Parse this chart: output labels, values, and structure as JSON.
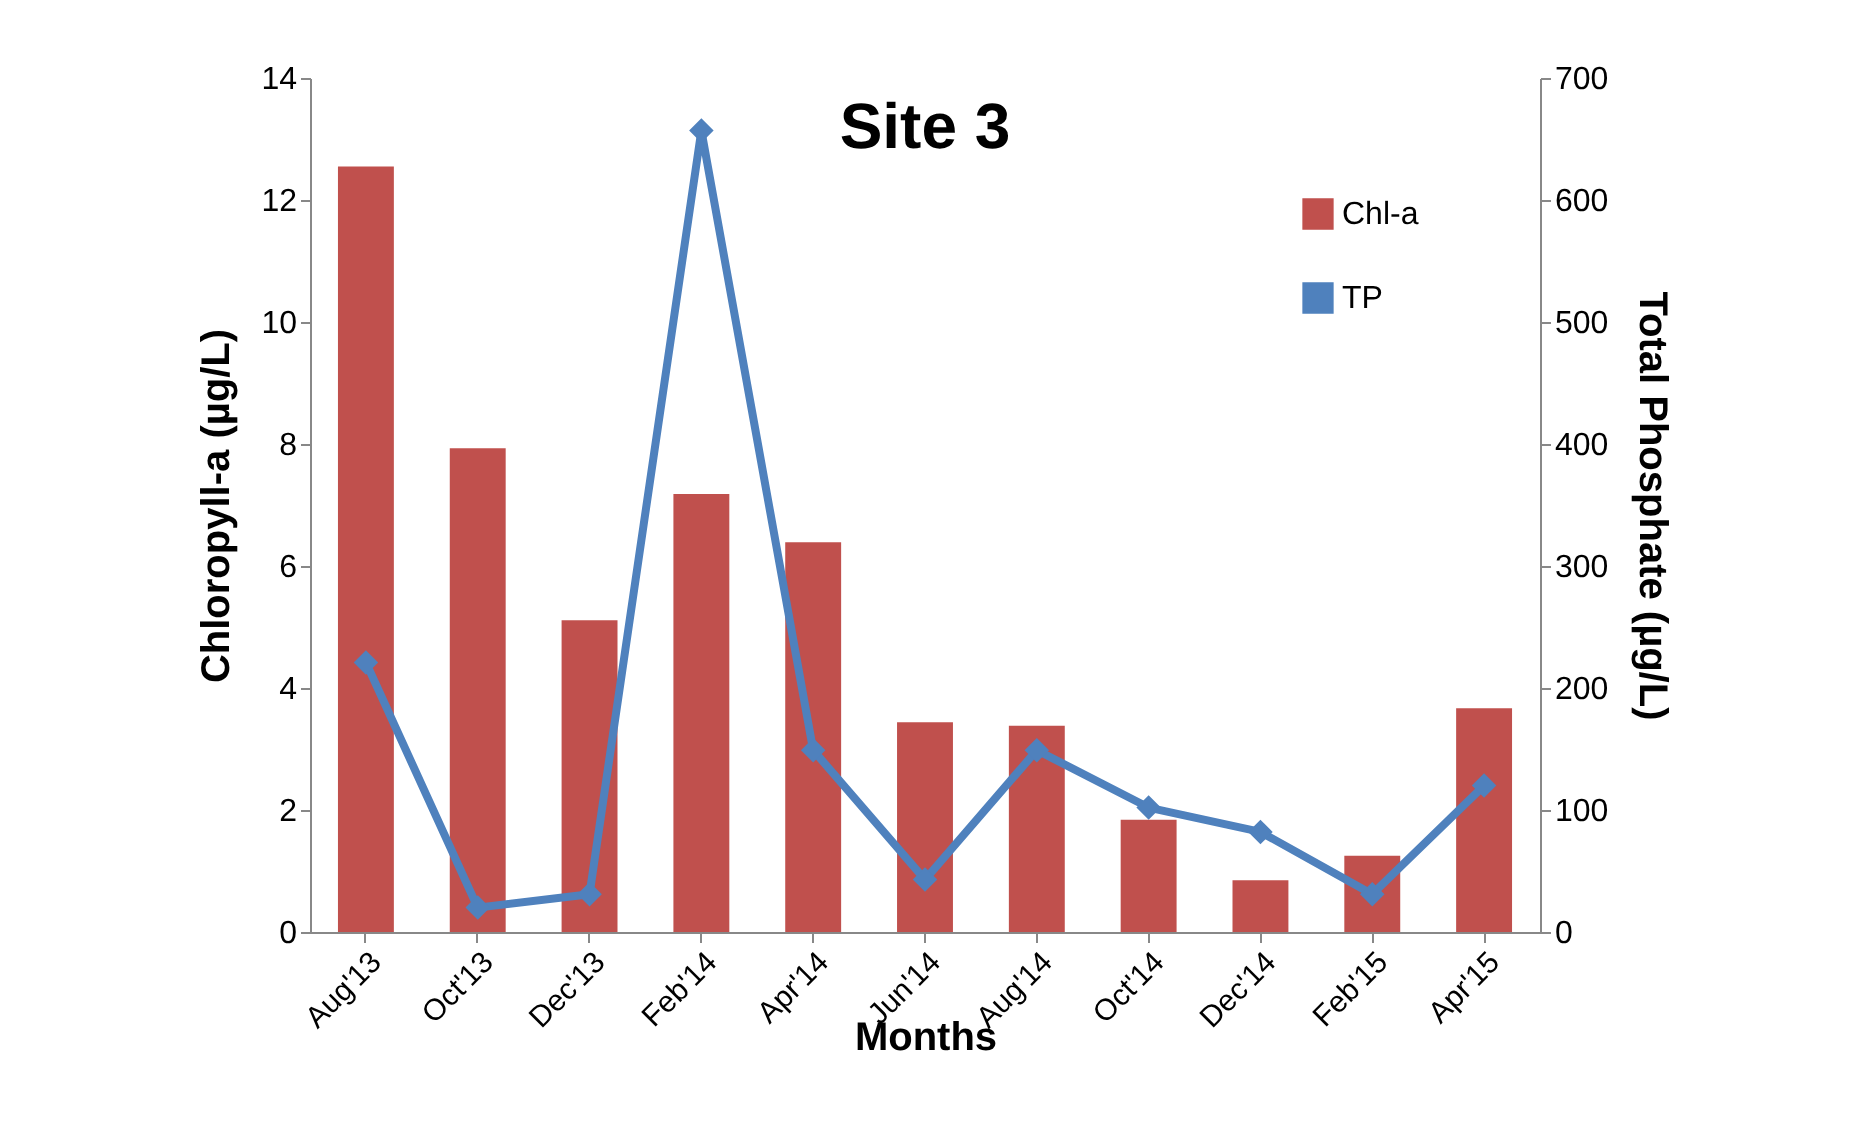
{
  "chart_data": {
    "type": "bar",
    "title": "Site 3",
    "xlabel": "Months",
    "ylabel": "Chloropyll-a (µg/L)",
    "y2label": "Total Phosphate (µg/L)",
    "categories": [
      "Aug'13",
      "Oct'13",
      "Dec'13",
      "Feb'14",
      "Apr'14",
      "Jun'14",
      "Aug'14",
      "Oct'14",
      "Dec'14",
      "Feb'15",
      "Apr'15"
    ],
    "series": [
      {
        "name": "Chl-a",
        "color": "#c0504d",
        "values": [
          12.55,
          7.93,
          5.11,
          7.18,
          6.39,
          3.44,
          3.38,
          1.84,
          0.85,
          1.25,
          3.67
        ]
      },
      {
        "name": "TP",
        "type": "line",
        "axis": "y2",
        "color": "#4f81bd",
        "values": [
          221,
          20,
          31,
          657,
          149,
          43,
          149,
          102,
          82,
          31,
          120
        ]
      }
    ],
    "ylim": [
      0,
      14
    ],
    "yticks": [
      0,
      2,
      4,
      6,
      8,
      10,
      12,
      14
    ],
    "y2lim": [
      0,
      700
    ],
    "y2ticks": [
      0,
      100,
      200,
      300,
      400,
      500,
      600,
      700
    ],
    "grid": false,
    "legend": "top right",
    "marker": "diamond",
    "line_style": "solid"
  }
}
